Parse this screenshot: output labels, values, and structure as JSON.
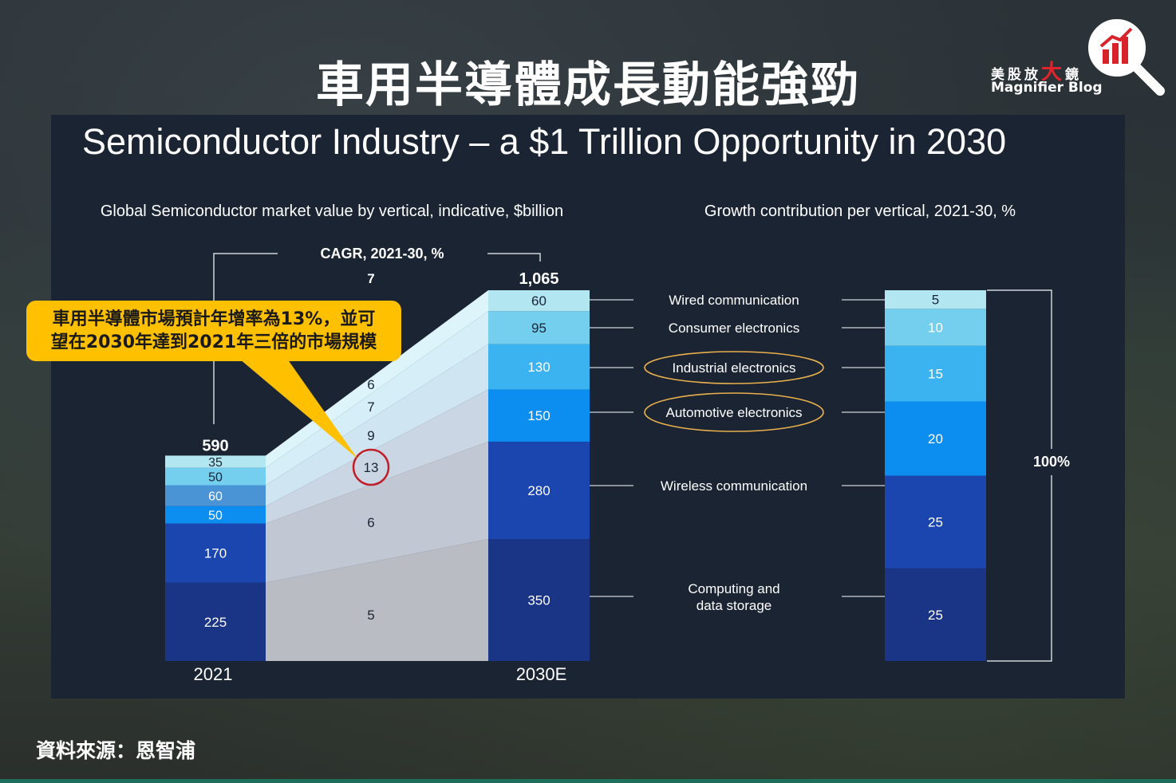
{
  "header": {
    "title": "車用半導體成長動能強勁",
    "logo_cn": [
      "美",
      "股",
      "放",
      "大",
      "鏡"
    ],
    "logo_en": "Magnifier Blog"
  },
  "slide_title": "Semiconductor Industry – a $1 Trillion Opportunity in 2030",
  "callout": {
    "line1": "車用半導體市場預計年增率為13%，並可",
    "line2": "望在2030年達到2021年三倍的市場規模"
  },
  "source": "資料來源：恩智浦",
  "colors": {
    "seg1": "#1a3585",
    "seg2": "#1b46b0",
    "seg3": "#0b8ef0",
    "seg4": "#3ab3f0",
    "seg5": "#74cfef",
    "seg6": "#b2e6f1",
    "callout": "#ffc000",
    "highlight_ring_red": "#c0202a",
    "highlight_ring_gold": "#e8b04d"
  },
  "chart_data": [
    {
      "type": "bar",
      "stacked": true,
      "title": "Global Semiconductor market value by vertical, indicative, $billion",
      "categories": [
        "2021",
        "2030E"
      ],
      "totals": [
        "590",
        "1,065"
      ],
      "cagr_header": "CAGR, 2021-30, %",
      "series": [
        {
          "name": "Computing and data storage",
          "values": [
            225,
            350
          ],
          "cagr": "5"
        },
        {
          "name": "Wireless communication",
          "values": [
            170,
            280
          ],
          "cagr": "6"
        },
        {
          "name": "Automotive electronics",
          "values": [
            50,
            150
          ],
          "cagr": "13"
        },
        {
          "name": "Industrial electronics",
          "values": [
            60,
            130
          ],
          "cagr": "9"
        },
        {
          "name": "Consumer electronics",
          "values": [
            50,
            95
          ],
          "cagr": "7"
        },
        {
          "name": "Wired communication",
          "values": [
            35,
            60
          ],
          "cagr": "6"
        }
      ],
      "top_cagr": "7"
    },
    {
      "type": "bar",
      "stacked": true,
      "title": "Growth contribution per vertical, 2021-30, %",
      "total_label": "100%",
      "series": [
        {
          "name": "Computing and data storage",
          "value": 25
        },
        {
          "name": "Wireless communication",
          "value": 25
        },
        {
          "name": "Automotive electronics",
          "value": 20
        },
        {
          "name": "Industrial electronics",
          "value": 15
        },
        {
          "name": "Consumer electronics",
          "value": 10
        },
        {
          "name": "Wired communication",
          "value": 5
        }
      ]
    }
  ]
}
